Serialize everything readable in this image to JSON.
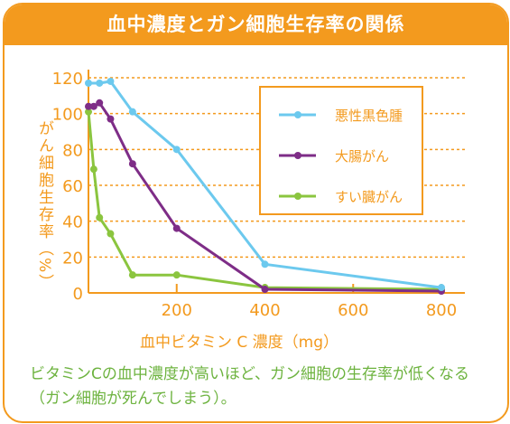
{
  "title": "血中濃度とガン細胞生存率の関係",
  "caption": "ビタミンCの血中濃度が高いほど、ガン細胞の生存率が低くなる（ガン細胞が死んでしまう）。",
  "colors": {
    "accent": "#F39A1E",
    "caption": "#6DB33F",
    "series": [
      "#6CC9EE",
      "#7E2D87",
      "#8BC53F"
    ]
  },
  "chart_data": {
    "type": "line",
    "xlabel": "血中ビタミン C 濃度（mg）",
    "ylabel": "がん細胞生存率（%）",
    "xlim": [
      0,
      800
    ],
    "ylim": [
      0,
      120
    ],
    "xticks": [
      200,
      400,
      600,
      800
    ],
    "yticks": [
      0,
      20,
      40,
      60,
      80,
      100,
      120
    ],
    "grid": "horizontal dashed",
    "legend_position": "top-right",
    "series": [
      {
        "name": "悪性黒色腫",
        "x": [
          0,
          25,
          50,
          100,
          200,
          400,
          800
        ],
        "y": [
          117,
          117,
          118,
          101,
          80,
          16,
          3
        ]
      },
      {
        "name": "大腸がん",
        "x": [
          0,
          12,
          25,
          50,
          100,
          200,
          400,
          800
        ],
        "y": [
          104,
          104,
          106,
          97,
          72,
          36,
          2,
          1
        ]
      },
      {
        "name": "すい臓がん",
        "x": [
          0,
          12,
          25,
          50,
          100,
          200,
          400,
          800
        ],
        "y": [
          101,
          69,
          42,
          33,
          10,
          10,
          3,
          2
        ]
      }
    ]
  }
}
